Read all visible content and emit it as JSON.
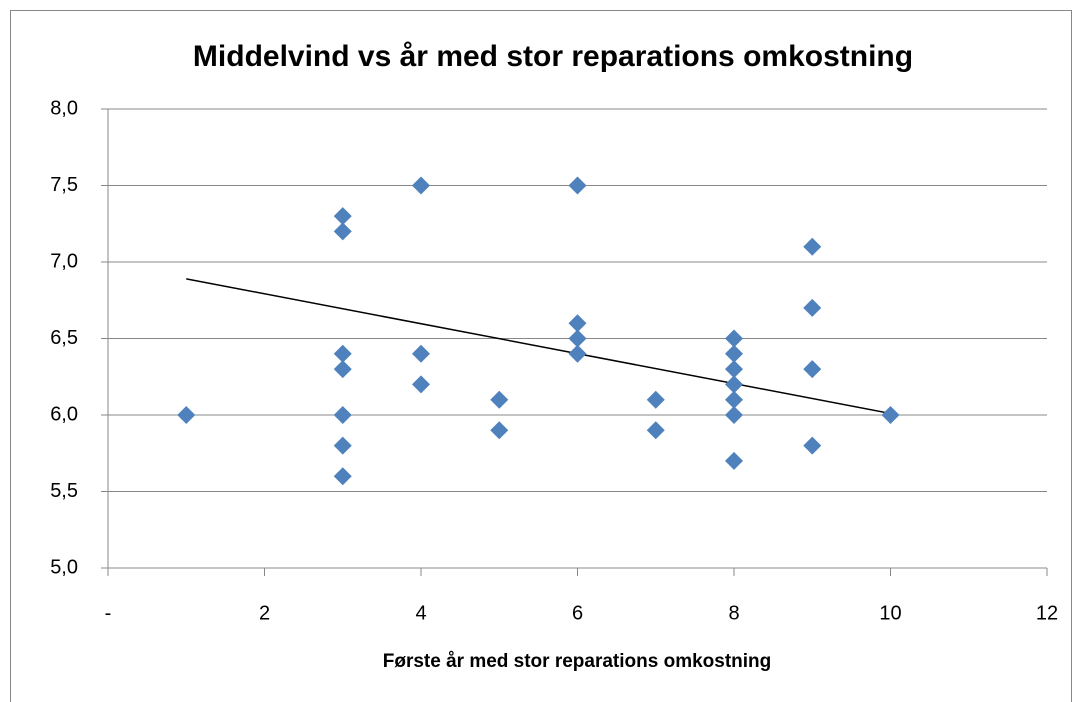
{
  "chart_data": {
    "type": "scatter",
    "title": "Middelvind vs år med stor reparations omkostning",
    "x_label": "Første år med stor reparations omkostning",
    "color": "#4f81bd",
    "x": [
      1,
      3,
      3,
      3,
      3,
      3,
      3,
      3,
      4,
      4,
      4,
      5,
      5,
      6,
      6,
      6,
      6,
      7,
      7,
      8,
      8,
      8,
      8,
      8,
      8,
      8,
      9,
      9,
      9,
      9,
      10
    ],
    "values": [
      6.0,
      7.3,
      7.2,
      6.4,
      6.3,
      6.0,
      5.8,
      5.6,
      7.5,
      6.4,
      6.2,
      6.1,
      5.9,
      7.5,
      6.6,
      6.5,
      6.4,
      6.1,
      5.9,
      6.5,
      6.4,
      6.3,
      6.2,
      6.1,
      6.0,
      5.7,
      7.1,
      6.7,
      6.3,
      5.8,
      6.0
    ],
    "trendline": {
      "x": [
        1,
        10
      ],
      "values": [
        6.89,
        6.01
      ],
      "color": "#000000"
    },
    "xlim": [
      0,
      12
    ],
    "xticks": [
      {
        "value": 0,
        "label": "-"
      },
      2,
      4,
      6,
      8,
      10,
      12
    ],
    "ylim": [
      5.0,
      8.0
    ],
    "yticks": [
      {
        "value": 5.0,
        "label": "5,0"
      },
      {
        "value": 5.5,
        "label": "5,5"
      },
      {
        "value": 6.0,
        "label": "6,0"
      },
      {
        "value": 6.5,
        "label": "6,5"
      },
      {
        "value": 7.0,
        "label": "7,0"
      },
      {
        "value": 7.5,
        "label": "7,5"
      },
      {
        "value": 8.0,
        "label": "8,0"
      }
    ],
    "grid": true
  }
}
